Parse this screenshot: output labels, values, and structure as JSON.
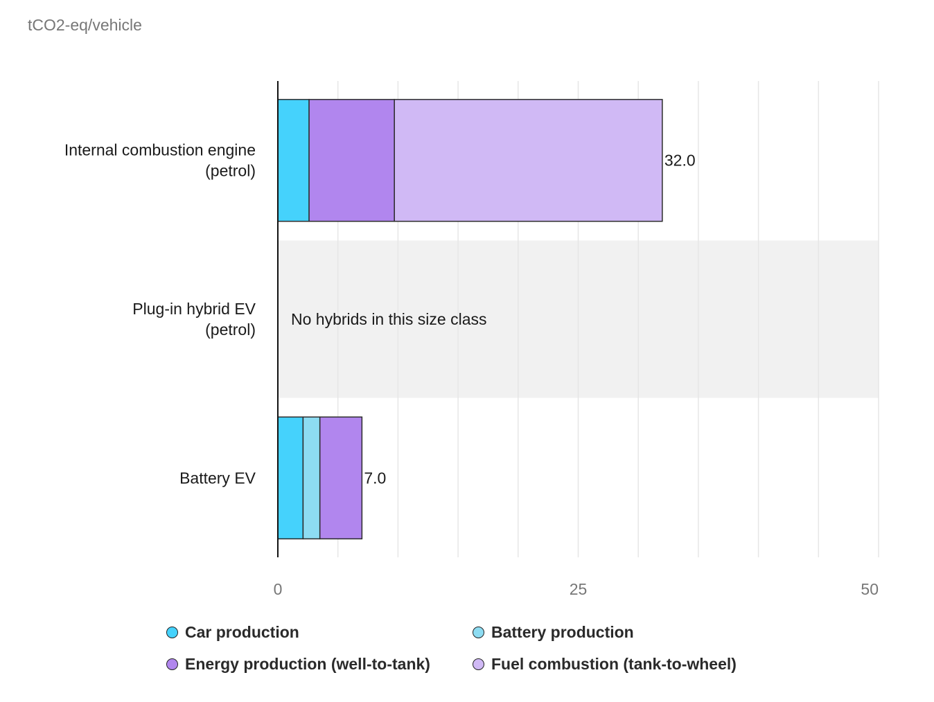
{
  "chart_data": {
    "type": "bar",
    "orientation": "horizontal",
    "stacked": true,
    "unit_label": "tCO2-eq/vehicle",
    "categories": [
      {
        "lines": [
          "Internal combustion engine",
          "(petrol)"
        ]
      },
      {
        "lines": [
          "Plug-in hybrid EV",
          "(petrol)"
        ]
      },
      {
        "lines": [
          "Battery EV"
        ]
      }
    ],
    "series": [
      {
        "name": "Car production",
        "color": "#45d2fc",
        "values": [
          2.6,
          null,
          2.1
        ]
      },
      {
        "name": "Battery production",
        "color": "#8ddcf2",
        "values": [
          0,
          null,
          1.4
        ]
      },
      {
        "name": "Energy production (well-to-tank)",
        "color": "#b186ee",
        "values": [
          7.1,
          null,
          3.5
        ]
      },
      {
        "name": "Fuel combustion (tank-to-wheel)",
        "color": "#d0b9f5",
        "values": [
          22.3,
          null,
          0
        ]
      }
    ],
    "totals": [
      "32.0",
      null,
      "7.0"
    ],
    "notes": [
      null,
      "No hybrids in this size class",
      null
    ],
    "xlim": [
      0,
      50
    ],
    "x_ticks": [
      {
        "value": 0,
        "label": "0"
      },
      {
        "value": 25,
        "label": "25"
      },
      {
        "value": 50,
        "label": "50"
      }
    ],
    "gridlines": [
      5,
      10,
      15,
      20,
      25,
      30,
      35,
      40,
      45,
      50
    ],
    "legend_position": "bottom"
  }
}
